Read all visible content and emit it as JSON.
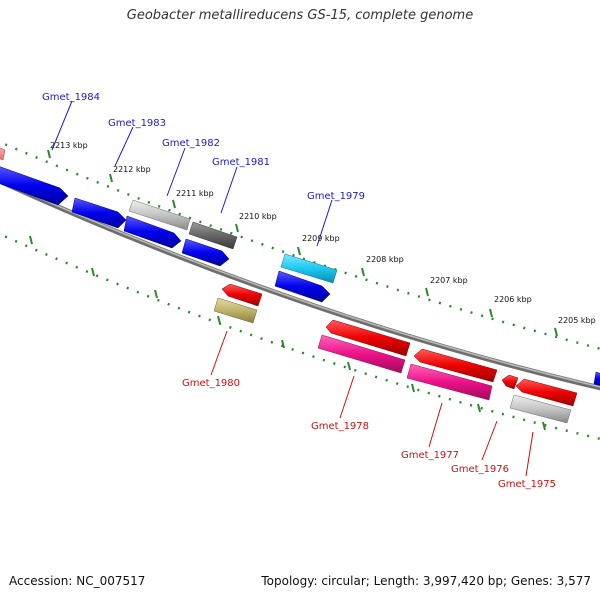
{
  "title": "Geobacter metallireducens GS-15, complete genome",
  "footer": {
    "accession": "Accession: NC_007517",
    "topology": "Topology: circular; Length: 3,997,420 bp; Genes: 3,577"
  },
  "colors": {
    "forward_label": "#1a1acc",
    "reverse_label": "#cc1111",
    "backbone": "#888888",
    "tick": "#2a8a2a"
  },
  "ticks": [
    {
      "label": "2213 kbp"
    },
    {
      "label": "2212 kbp"
    },
    {
      "label": "2211 kbp"
    },
    {
      "label": "2210 kbp"
    },
    {
      "label": "2209 kbp"
    },
    {
      "label": "2208 kbp"
    },
    {
      "label": "2207 kbp"
    },
    {
      "label": "2206 kbp"
    },
    {
      "label": "2205 kbp"
    }
  ],
  "gene_labels": [
    {
      "name": "Gmet_1984",
      "strand": "forward"
    },
    {
      "name": "Gmet_1983",
      "strand": "forward"
    },
    {
      "name": "Gmet_1982",
      "strand": "forward"
    },
    {
      "name": "Gmet_1981",
      "strand": "forward"
    },
    {
      "name": "Gmet_1979",
      "strand": "forward"
    },
    {
      "name": "Gmet_1980",
      "strand": "reverse"
    },
    {
      "name": "Gmet_1978",
      "strand": "reverse"
    },
    {
      "name": "Gmet_1977",
      "strand": "reverse"
    },
    {
      "name": "Gmet_1976",
      "strand": "reverse"
    },
    {
      "name": "Gmet_1975",
      "strand": "reverse"
    }
  ]
}
